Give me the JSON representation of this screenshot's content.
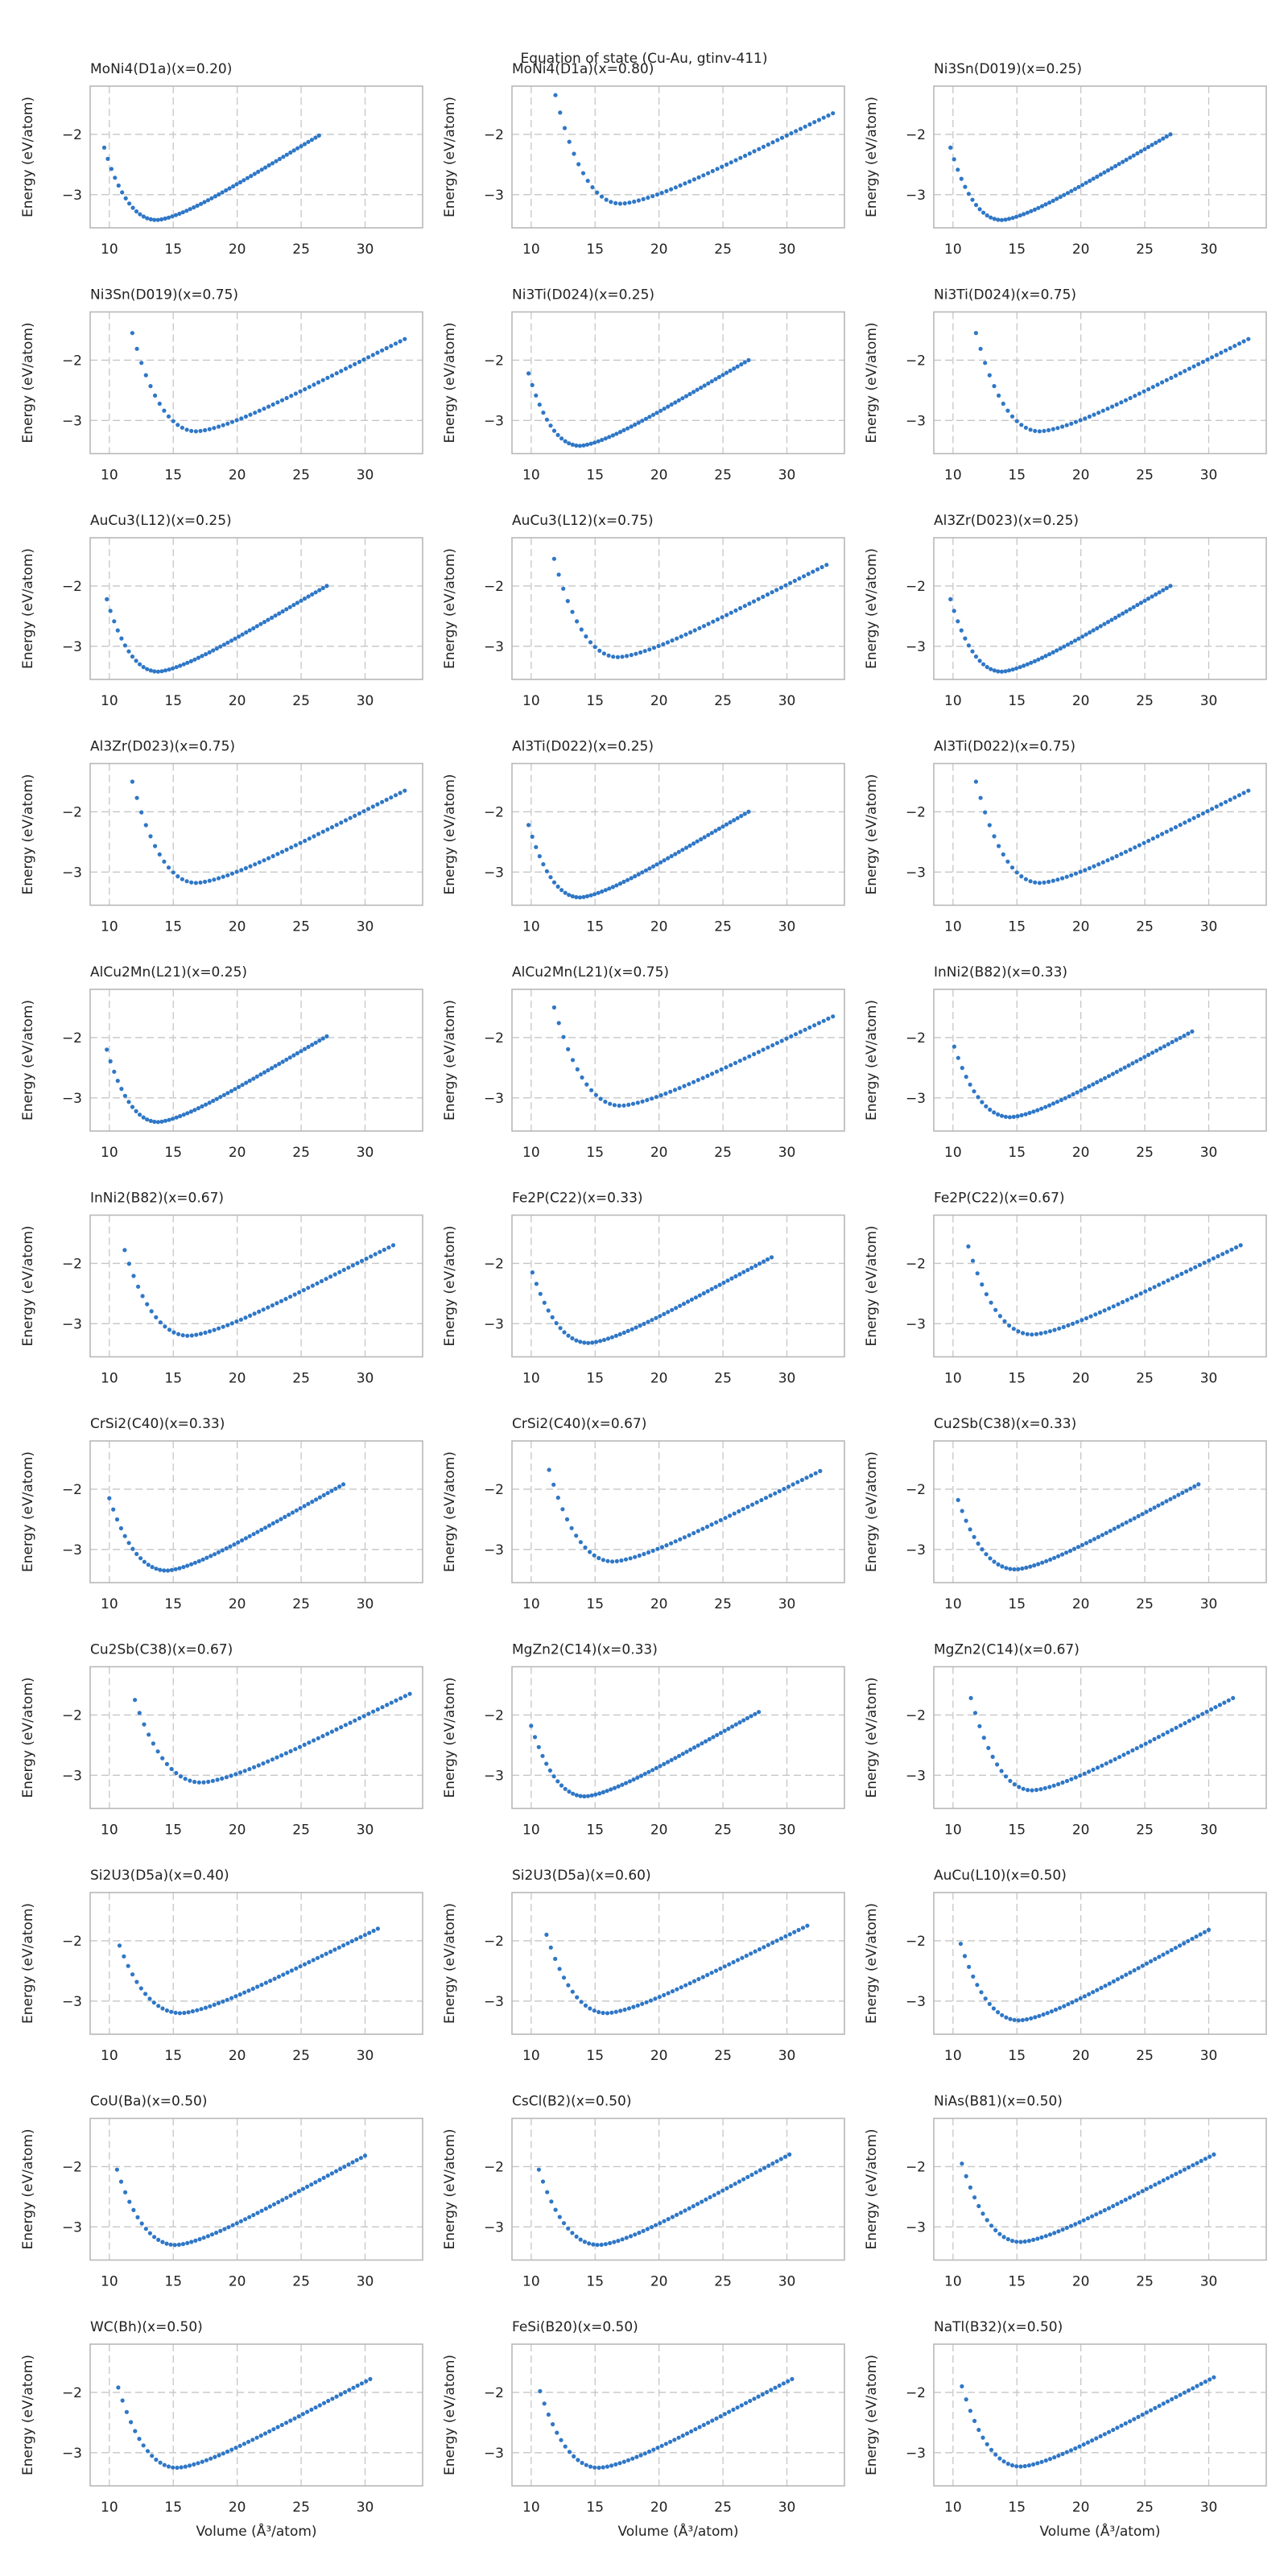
{
  "figure": {
    "suptitle": "Equation of state (Cu-Au, gtinv-411)",
    "marker_color": "#2f77c6"
  },
  "chart_data": {
    "type": "scatter",
    "title": "Equation of state (Cu-Au, gtinv-411)",
    "xlabel": "Volume (Å³/atom)",
    "ylabel": "Energy (eV/atom)",
    "xlim": [
      8.5,
      34.5
    ],
    "ylim": [
      -3.55,
      -1.2
    ],
    "xticks": [
      10,
      15,
      20,
      25,
      30
    ],
    "yticks": [
      -3,
      -2
    ],
    "grid": true,
    "panels": [
      {
        "title": "MoNi4(D1a)(x=0.20)",
        "v0": 13.7,
        "e0": -3.42,
        "vmin": 9.6,
        "vmax": 26.4,
        "emin_v": -2.22,
        "emax_v": -2.02
      },
      {
        "title": "MoNi4(D1a)(x=0.80)",
        "v0": 17.0,
        "e0": -3.15,
        "vmin": 11.9,
        "vmax": 33.6,
        "emin_v": -1.35,
        "emax_v": -1.65
      },
      {
        "title": "Ni3Sn(D019)(x=0.25)",
        "v0": 13.8,
        "e0": -3.42,
        "vmin": 9.8,
        "vmax": 27.0,
        "emin_v": -2.22,
        "emax_v": -2.0
      },
      {
        "title": "Ni3Sn(D019)(x=0.75)",
        "v0": 16.8,
        "e0": -3.18,
        "vmin": 11.8,
        "vmax": 33.1,
        "emin_v": -1.55,
        "emax_v": -1.65
      },
      {
        "title": "Ni3Ti(D024)(x=0.25)",
        "v0": 13.8,
        "e0": -3.42,
        "vmin": 9.8,
        "vmax": 27.0,
        "emin_v": -2.22,
        "emax_v": -2.0
      },
      {
        "title": "Ni3Ti(D024)(x=0.75)",
        "v0": 16.8,
        "e0": -3.18,
        "vmin": 11.8,
        "vmax": 33.1,
        "emin_v": -1.55,
        "emax_v": -1.65
      },
      {
        "title": "AuCu3(L12)(x=0.25)",
        "v0": 13.8,
        "e0": -3.42,
        "vmin": 9.8,
        "vmax": 27.0,
        "emin_v": -2.22,
        "emax_v": -2.0
      },
      {
        "title": "AuCu3(L12)(x=0.75)",
        "v0": 16.8,
        "e0": -3.18,
        "vmin": 11.8,
        "vmax": 33.1,
        "emin_v": -1.55,
        "emax_v": -1.65
      },
      {
        "title": "Al3Zr(D023)(x=0.25)",
        "v0": 13.8,
        "e0": -3.42,
        "vmin": 9.8,
        "vmax": 27.0,
        "emin_v": -2.22,
        "emax_v": -2.0
      },
      {
        "title": "Al3Zr(D023)(x=0.75)",
        "v0": 16.8,
        "e0": -3.18,
        "vmin": 11.8,
        "vmax": 33.1,
        "emin_v": -1.5,
        "emax_v": -1.65
      },
      {
        "title": "Al3Ti(D022)(x=0.25)",
        "v0": 13.8,
        "e0": -3.42,
        "vmin": 9.8,
        "vmax": 27.0,
        "emin_v": -2.22,
        "emax_v": -2.0
      },
      {
        "title": "Al3Ti(D022)(x=0.75)",
        "v0": 16.8,
        "e0": -3.18,
        "vmin": 11.8,
        "vmax": 33.1,
        "emin_v": -1.5,
        "emax_v": -1.65
      },
      {
        "title": "AlCu2Mn(L21)(x=0.25)",
        "v0": 13.8,
        "e0": -3.4,
        "vmin": 9.8,
        "vmax": 27.0,
        "emin_v": -2.2,
        "emax_v": -1.98
      },
      {
        "title": "AlCu2Mn(L21)(x=0.75)",
        "v0": 17.0,
        "e0": -3.13,
        "vmin": 11.8,
        "vmax": 33.6,
        "emin_v": -1.5,
        "emax_v": -1.65
      },
      {
        "title": "InNi2(B82)(x=0.33)",
        "v0": 14.5,
        "e0": -3.32,
        "vmin": 10.1,
        "vmax": 28.7,
        "emin_v": -2.15,
        "emax_v": -1.9
      },
      {
        "title": "InNi2(B82)(x=0.67)",
        "v0": 16.2,
        "e0": -3.2,
        "vmin": 11.2,
        "vmax": 32.2,
        "emin_v": -1.78,
        "emax_v": -1.7
      },
      {
        "title": "Fe2P(C22)(x=0.33)",
        "v0": 14.5,
        "e0": -3.32,
        "vmin": 10.1,
        "vmax": 28.8,
        "emin_v": -2.15,
        "emax_v": -1.9
      },
      {
        "title": "Fe2P(C22)(x=0.67)",
        "v0": 16.2,
        "e0": -3.18,
        "vmin": 11.2,
        "vmax": 32.5,
        "emin_v": -1.72,
        "emax_v": -1.7
      },
      {
        "title": "CrSi2(C40)(x=0.33)",
        "v0": 14.5,
        "e0": -3.35,
        "vmin": 10.0,
        "vmax": 28.3,
        "emin_v": -2.15,
        "emax_v": -1.92
      },
      {
        "title": "CrSi2(C40)(x=0.67)",
        "v0": 16.4,
        "e0": -3.2,
        "vmin": 11.4,
        "vmax": 32.6,
        "emin_v": -1.68,
        "emax_v": -1.7
      },
      {
        "title": "Cu2Sb(C38)(x=0.33)",
        "v0": 14.9,
        "e0": -3.33,
        "vmin": 10.4,
        "vmax": 29.2,
        "emin_v": -2.18,
        "emax_v": -1.92
      },
      {
        "title": "Cu2Sb(C38)(x=0.67)",
        "v0": 17.2,
        "e0": -3.12,
        "vmin": 12.0,
        "vmax": 33.5,
        "emin_v": -1.75,
        "emax_v": -1.65
      },
      {
        "title": "MgZn2(C14)(x=0.33)",
        "v0": 14.2,
        "e0": -3.35,
        "vmin": 10.0,
        "vmax": 27.8,
        "emin_v": -2.18,
        "emax_v": -1.95
      },
      {
        "title": "MgZn2(C14)(x=0.67)",
        "v0": 16.2,
        "e0": -3.25,
        "vmin": 11.4,
        "vmax": 31.9,
        "emin_v": -1.72,
        "emax_v": -1.72
      },
      {
        "title": "Si2U3(D5a)(x=0.40)",
        "v0": 15.6,
        "e0": -3.2,
        "vmin": 10.8,
        "vmax": 31.0,
        "emin_v": -2.08,
        "emax_v": -1.8
      },
      {
        "title": "Si2U3(D5a)(x=0.60)",
        "v0": 15.9,
        "e0": -3.2,
        "vmin": 11.2,
        "vmax": 31.6,
        "emin_v": -1.9,
        "emax_v": -1.75
      },
      {
        "title": "AuCu(L10)(x=0.50)",
        "v0": 15.2,
        "e0": -3.32,
        "vmin": 10.6,
        "vmax": 30.0,
        "emin_v": -2.05,
        "emax_v": -1.82
      },
      {
        "title": "CoU(Ba)(x=0.50)",
        "v0": 15.2,
        "e0": -3.3,
        "vmin": 10.6,
        "vmax": 30.0,
        "emin_v": -2.05,
        "emax_v": -1.82
      },
      {
        "title": "CsCl(B2)(x=0.50)",
        "v0": 15.3,
        "e0": -3.3,
        "vmin": 10.6,
        "vmax": 30.2,
        "emin_v": -2.05,
        "emax_v": -1.8
      },
      {
        "title": "NiAs(B81)(x=0.50)",
        "v0": 15.3,
        "e0": -3.25,
        "vmin": 10.7,
        "vmax": 30.4,
        "emin_v": -1.95,
        "emax_v": -1.8
      },
      {
        "title": "WC(Bh)(x=0.50)",
        "v0": 15.3,
        "e0": -3.25,
        "vmin": 10.7,
        "vmax": 30.4,
        "emin_v": -1.92,
        "emax_v": -1.78
      },
      {
        "title": "FeSi(B20)(x=0.50)",
        "v0": 15.3,
        "e0": -3.25,
        "vmin": 10.7,
        "vmax": 30.4,
        "emin_v": -1.98,
        "emax_v": -1.78
      },
      {
        "title": "NaTl(B32)(x=0.50)",
        "v0": 15.3,
        "e0": -3.23,
        "vmin": 10.7,
        "vmax": 30.4,
        "emin_v": -1.9,
        "emax_v": -1.75
      }
    ]
  }
}
